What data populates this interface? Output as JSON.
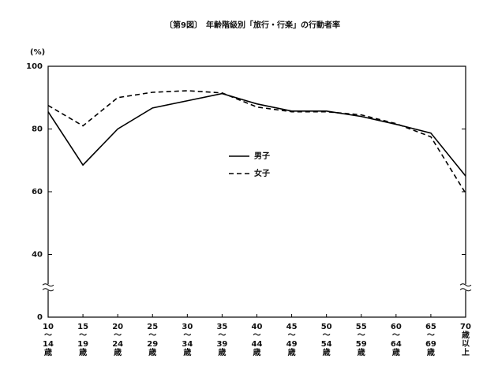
{
  "chart_data": {
    "type": "line",
    "title": "〔第9図〕　年齢階級別「旅行・行楽」の行動者率",
    "y_label": "(%)",
    "categories": [
      "10～14歳",
      "15～19歳",
      "20～24歳",
      "25～29歳",
      "30～34歳",
      "35～39歳",
      "40～44歳",
      "45～49歳",
      "50～54歳",
      "55～59歳",
      "60～64歳",
      "65～69歳",
      "70歳以上"
    ],
    "series": [
      {
        "name": "男子",
        "color": "#000000",
        "dash": false,
        "values": [
          85.5,
          68.5,
          80,
          86.7,
          89,
          91.3,
          88,
          85.7,
          85.7,
          84,
          81.5,
          78.7,
          65
        ]
      },
      {
        "name": "女子",
        "color": "#000000",
        "dash": true,
        "values": [
          87.5,
          81,
          90,
          91.7,
          92.2,
          91.5,
          87,
          85.5,
          85.5,
          84.5,
          81.7,
          77.5,
          59.5
        ]
      }
    ],
    "ylim": [
      0,
      100
    ],
    "yticks": [
      0,
      40,
      60,
      80,
      100
    ],
    "axis_break": true
  }
}
